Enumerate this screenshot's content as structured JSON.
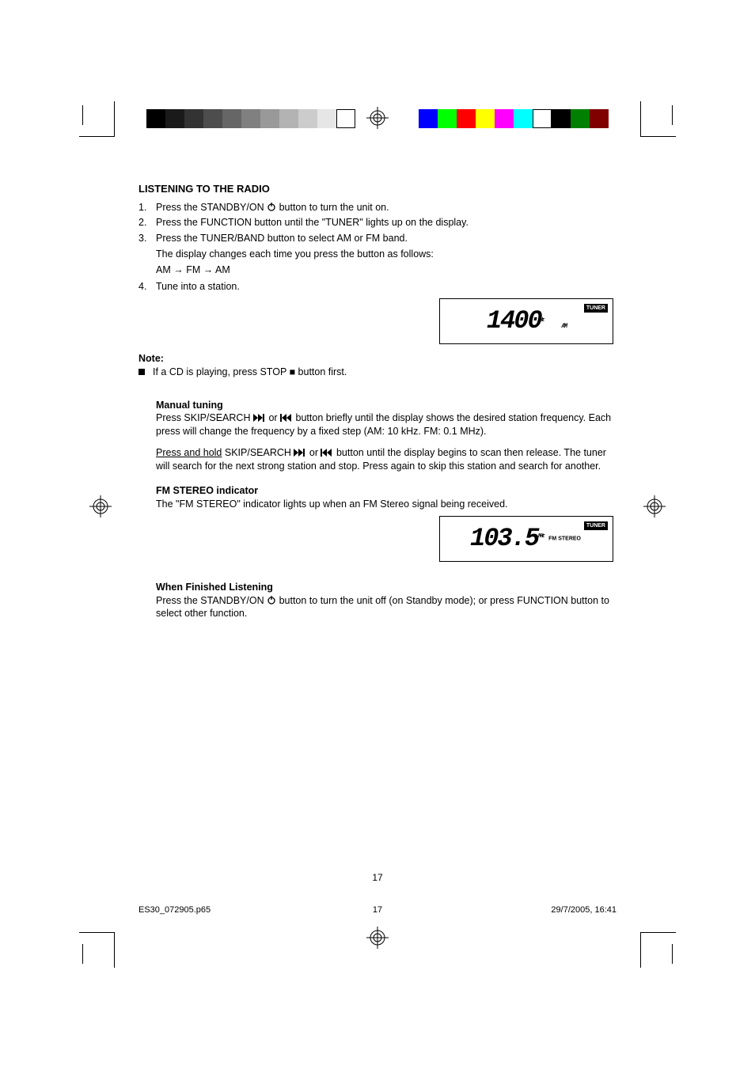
{
  "colorbars": {
    "grays": [
      "#000000",
      "#1a1a1a",
      "#333333",
      "#4d4d4d",
      "#666666",
      "#808080",
      "#999999",
      "#b3b3b3",
      "#cccccc",
      "#e6e6e6",
      "#ffffff"
    ],
    "colors": [
      "#0000ff",
      "#00ff00",
      "#ff0000",
      "#ffff00",
      "#ff00ff",
      "#00ffff",
      "#ffffff",
      "#000000",
      "#008000",
      "#800000"
    ]
  },
  "sections": {
    "radio": {
      "title": "LISTENING TO THE RADIO",
      "steps": {
        "s1a": "Press the STANDBY/ON ",
        "s1b": " button to turn the unit on.",
        "s2": "Press the FUNCTION button until the \"TUNER\" lights up on the display.",
        "s3a": "Press the TUNER/BAND button to select AM or FM band.",
        "s3b": "The display changes each time you press the button as follows:",
        "s3c": "AM → FM → AM",
        "s4": "Tune into a station."
      },
      "display1": {
        "value": "1400",
        "unit": "KHz",
        "band": "AM",
        "tag": "TUNER"
      },
      "note_label": "Note:",
      "note_bullet": "If a CD is playing, press STOP ■ button first.",
      "manual": {
        "title": "Manual tuning",
        "t1a": "Press SKIP/SEARCH ",
        "t1b": " or ",
        "t1c": " button briefly until the display shows the desired station frequency. Each press will change the frequency by a fixed step (AM: 10 kHz. FM: 0.1 MHz).",
        "t2a": "Press and hold",
        "t2b": " SKIP/SEARCH ",
        "t2c": " or ",
        "t2d": " button until the display begins to scan then release. The tuner will search for the next strong station and stop. Press again to skip this station and search for another."
      },
      "fm_stereo": {
        "title": "FM STEREO indicator",
        "text": "The \"FM STEREO\" indicator lights up when an FM Stereo signal being received."
      },
      "display2": {
        "value": "103.5",
        "unit": "MHz",
        "stereo": "FM STEREO",
        "tag": "TUNER"
      },
      "finish": {
        "title": "When Finished Listening",
        "t1": "Press the STANDBY/ON ",
        "t2": " button to turn the unit off (on Standby mode); or press FUNCTION button to select other function."
      }
    }
  },
  "page_number": "17",
  "footer": {
    "left": "ES30_072905.p65",
    "mid": "17",
    "right": "29/7/2005, 16:41"
  }
}
